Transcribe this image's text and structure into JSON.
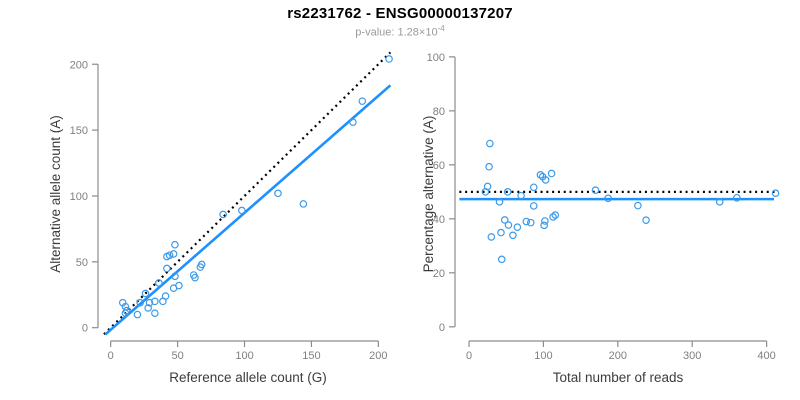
{
  "header": {
    "title": "rs2231762 - ENSG00000137207",
    "pvalue_prefix": "p-value: 1.28×10",
    "pvalue_exponent": "-4"
  },
  "palette": {
    "point": "#3d9ae8",
    "line": "#1e90ff",
    "dotted": "#000000",
    "axis": "#8c8c8c",
    "tick_label": "#808080",
    "axis_title": "#3c3c3c",
    "background": "#ffffff"
  },
  "chart_data": [
    {
      "type": "scatter",
      "xlabel": "Reference allele count (G)",
      "ylabel": "Alternative allele count (A)",
      "xticks": [
        0,
        50,
        100,
        150,
        200
      ],
      "yticks": [
        0,
        50,
        100,
        150,
        200
      ],
      "xlim": [
        -5,
        210.2
      ],
      "ylim": [
        -6.3,
        209.3
      ],
      "grid": false,
      "points": [
        [
          208,
          204
        ],
        [
          188,
          172
        ],
        [
          181,
          156
        ],
        [
          144,
          94
        ],
        [
          125,
          102
        ],
        [
          98,
          89
        ],
        [
          84,
          86
        ],
        [
          68,
          48
        ],
        [
          67,
          46
        ],
        [
          62,
          40
        ],
        [
          63,
          38
        ],
        [
          48,
          63
        ],
        [
          47,
          56
        ],
        [
          44,
          55
        ],
        [
          42,
          54
        ],
        [
          42,
          45
        ],
        [
          48,
          39
        ],
        [
          47,
          30
        ],
        [
          51,
          32
        ],
        [
          41,
          24
        ],
        [
          36,
          34
        ],
        [
          26,
          26
        ],
        [
          22,
          19
        ],
        [
          29,
          19
        ],
        [
          33,
          20
        ],
        [
          39,
          20
        ],
        [
          28,
          15
        ],
        [
          9,
          19
        ],
        [
          11,
          16
        ],
        [
          11,
          11
        ],
        [
          12,
          13
        ],
        [
          20,
          10
        ],
        [
          33,
          11
        ]
      ],
      "lines": [
        {
          "name": "identity-line",
          "style": "dotted",
          "color_key": "dotted",
          "x1": -5,
          "y1": -5,
          "x2": 209,
          "y2": 209,
          "width": 2.2
        },
        {
          "name": "fit-line",
          "style": "solid",
          "color_key": "line",
          "x1": -4,
          "y1": -5.1,
          "x2": 209,
          "y2": 184,
          "width": 2.6
        }
      ]
    },
    {
      "type": "scatter",
      "xlabel": "Total number of reads",
      "ylabel": "Percentage alternative (A)",
      "xticks": [
        0,
        100,
        200,
        300,
        400
      ],
      "yticks": [
        0,
        20,
        40,
        60,
        80,
        100
      ],
      "xlim": [
        -14.8,
        415.3
      ],
      "ylim": [
        -3.4,
        101.8
      ],
      "grid": false,
      "points": [
        [
          412,
          49.5
        ],
        [
          360,
          47.8
        ],
        [
          337,
          46.3
        ],
        [
          238,
          39.5
        ],
        [
          227,
          44.9
        ],
        [
          187,
          47.6
        ],
        [
          170,
          50.6
        ],
        [
          116,
          41.4
        ],
        [
          113,
          40.7
        ],
        [
          102,
          39.2
        ],
        [
          101,
          37.6
        ],
        [
          111,
          56.8
        ],
        [
          103,
          54.4
        ],
        [
          99,
          55.6
        ],
        [
          96,
          56.3
        ],
        [
          87,
          51.7
        ],
        [
          87,
          44.8
        ],
        [
          77,
          39.0
        ],
        [
          83,
          38.6
        ],
        [
          65,
          36.9
        ],
        [
          70,
          48.6
        ],
        [
          52,
          50.0
        ],
        [
          41,
          46.3
        ],
        [
          48,
          39.6
        ],
        [
          53,
          37.7
        ],
        [
          59,
          33.9
        ],
        [
          43,
          34.9
        ],
        [
          28,
          67.9
        ],
        [
          27,
          59.3
        ],
        [
          22,
          50.0
        ],
        [
          25,
          52.0
        ],
        [
          30,
          33.3
        ],
        [
          44,
          25.0
        ]
      ],
      "lines": [
        {
          "name": "expected-50pct-line",
          "style": "dotted",
          "color_key": "dotted",
          "x1": -13,
          "y1": 50,
          "x2": 413,
          "y2": 50,
          "width": 2.2
        },
        {
          "name": "fit-line",
          "style": "solid",
          "color_key": "line",
          "x1": -13,
          "y1": 47.3,
          "x2": 410,
          "y2": 47.3,
          "width": 2.6
        }
      ]
    }
  ]
}
